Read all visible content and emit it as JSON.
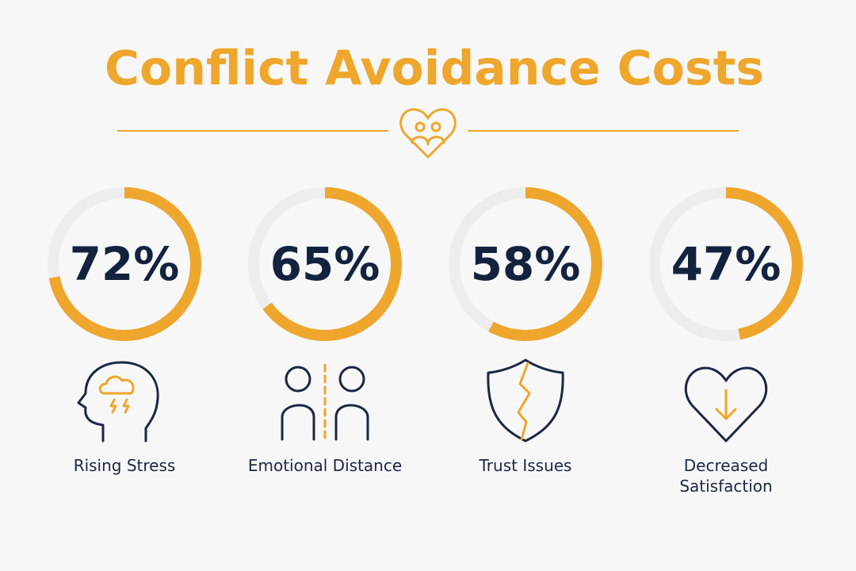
{
  "chart_data": {
    "type": "ring",
    "title": "Conflict Avoidance Costs",
    "categories": [
      "Rising Stress",
      "Emotional Distance",
      "Trust Issues",
      "Decreased Satisfaction"
    ],
    "values": [
      72,
      65,
      58,
      47
    ],
    "value_labels": [
      "72%",
      "65%",
      "58%",
      "47%"
    ],
    "color": "#eea62c",
    "track_color": "#ededed"
  }
}
